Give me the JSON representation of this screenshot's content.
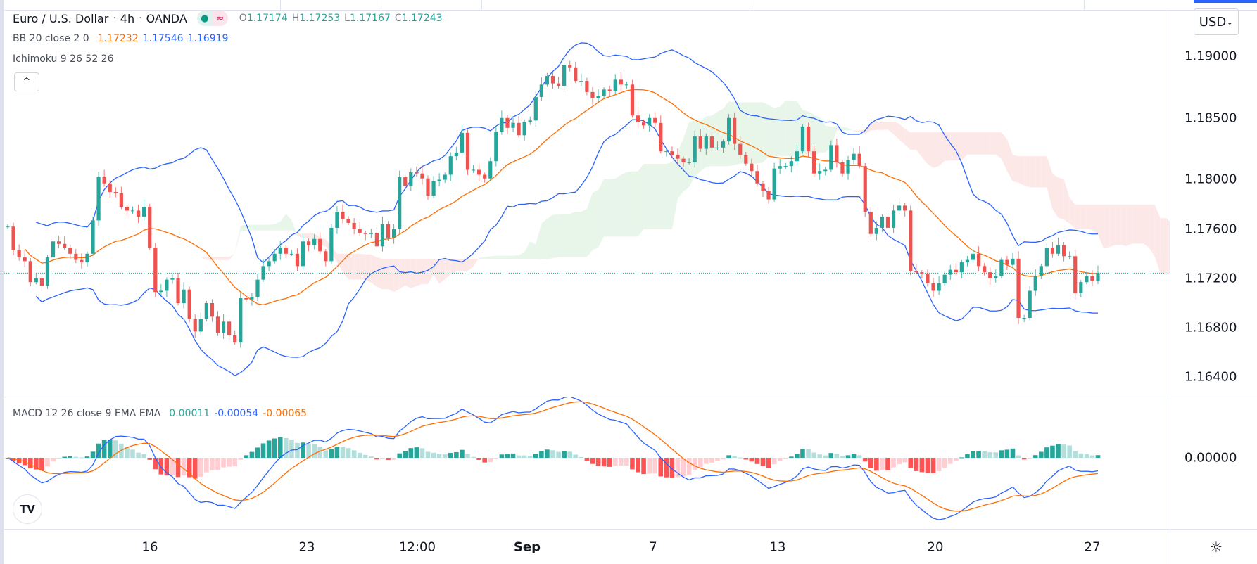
{
  "header": {
    "symbol": "Euro / U.S. Dollar",
    "interval": "4h",
    "exchange": "OANDA",
    "separator": "·",
    "badge_icons": [
      "market-open-dot-icon",
      "delayed-data-icon"
    ],
    "badge_symbol": "≈",
    "ohlc": {
      "o_label": "O",
      "o": "1.17174",
      "h_label": "H",
      "h": "1.17253",
      "l_label": "L",
      "l": "1.17167",
      "c_label": "C",
      "c": "1.17243"
    }
  },
  "indicators": {
    "bb": {
      "label": "BB 20 close 2 0",
      "basis": "1.17232",
      "upper": "1.17546",
      "lower": "1.16919"
    },
    "ichimoku": {
      "label": "Ichimoku 9 26 52 26"
    },
    "macd": {
      "label": "MACD 12 26 close 9 EMA EMA",
      "histogram": "0.00011",
      "macd": "-0.00054",
      "signal": "-0.00065"
    }
  },
  "controls": {
    "collapse_symbol": "^",
    "currency": "USD",
    "currency_caret": "⌄",
    "logo": "TV",
    "settings_symbol": "☼"
  },
  "colors": {
    "up": "#26a69a",
    "down": "#ef5350",
    "bb_basis": "#ff6d00",
    "bb_bands": "#2962ff",
    "cloud_bull": "#e8f5e9",
    "cloud_bear": "#fde8e8",
    "macd": "#2962ff",
    "signal": "#ff6d00",
    "hist_up_strong": "#26a69a",
    "hist_up_weak": "#b2dfdb",
    "hist_down_strong": "#ff5252",
    "hist_down_weak": "#ffcdd2"
  },
  "chart_data": {
    "type": "candlestick",
    "title": "Euro / U.S. Dollar · 4h · OANDA",
    "last_price": 1.17243,
    "ylim": [
      1.162,
      1.192
    ],
    "yticks": [
      "1.19000",
      "1.18500",
      "1.18000",
      "1.17600",
      "1.17200",
      "1.16800",
      "1.16400"
    ],
    "macd_yticks": [
      "0.00000"
    ],
    "xticks": [
      "16",
      "23",
      "12:00",
      "Sep",
      "7",
      "13",
      "20",
      "27"
    ],
    "grid": false,
    "closes": [
      1.1762,
      1.1743,
      1.1737,
      1.1734,
      1.1717,
      1.172,
      1.1714,
      1.1737,
      1.175,
      1.1748,
      1.1745,
      1.174,
      1.1735,
      1.1733,
      1.174,
      1.1767,
      1.1802,
      1.1797,
      1.179,
      1.1789,
      1.1778,
      1.1775,
      1.1775,
      1.177,
      1.1778,
      1.1745,
      1.1709,
      1.171,
      1.1719,
      1.172,
      1.17,
      1.1711,
      1.1687,
      1.1677,
      1.1687,
      1.17,
      1.1689,
      1.1676,
      1.1685,
      1.1674,
      1.1668,
      1.1704,
      1.1703,
      1.1705,
      1.1719,
      1.173,
      1.1734,
      1.174,
      1.1745,
      1.174,
      1.174,
      1.173,
      1.175,
      1.1747,
      1.1752,
      1.1742,
      1.1734,
      1.1761,
      1.1774,
      1.1768,
      1.1765,
      1.176,
      1.1757,
      1.1756,
      1.1757,
      1.1746,
      1.1764,
      1.1753,
      1.176,
      1.1802,
      1.1795,
      1.1806,
      1.1805,
      1.1801,
      1.1787,
      1.1799,
      1.18,
      1.1804,
      1.1819,
      1.1822,
      1.1838,
      1.1808,
      1.1808,
      1.1804,
      1.1801,
      1.1815,
      1.1839,
      1.185,
      1.1842,
      1.1846,
      1.1836,
      1.1847,
      1.1848,
      1.1867,
      1.1877,
      1.1884,
      1.1878,
      1.1876,
      1.1893,
      1.1891,
      1.188,
      1.188,
      1.1871,
      1.1866,
      1.1868,
      1.1873,
      1.1872,
      1.1881,
      1.1877,
      1.1877,
      1.1852,
      1.1847,
      1.1844,
      1.185,
      1.1846,
      1.1823,
      1.1823,
      1.182,
      1.1817,
      1.1814,
      1.1814,
      1.1835,
      1.1825,
      1.1835,
      1.1826,
      1.1826,
      1.1831,
      1.185,
      1.1829,
      1.182,
      1.1813,
      1.1807,
      1.1797,
      1.1791,
      1.1784,
      1.1809,
      1.1811,
      1.1811,
      1.1815,
      1.1823,
      1.1843,
      1.1823,
      1.1805,
      1.1807,
      1.1808,
      1.1828,
      1.1814,
      1.1805,
      1.1816,
      1.1821,
      1.1811,
      1.1774,
      1.1756,
      1.1761,
      1.177,
      1.1761,
      1.1775,
      1.1779,
      1.1775,
      1.1726,
      1.1725,
      1.1724,
      1.1716,
      1.171,
      1.1716,
      1.1723,
      1.1727,
      1.1725,
      1.1733,
      1.1735,
      1.174,
      1.173,
      1.1725,
      1.172,
      1.1722,
      1.1735,
      1.1731,
      1.1736,
      1.1688,
      1.1688,
      1.171,
      1.1722,
      1.173,
      1.1745,
      1.174,
      1.1747,
      1.1738,
      1.1738,
      1.1708,
      1.1717,
      1.1722,
      1.1718,
      1.17243
    ]
  }
}
